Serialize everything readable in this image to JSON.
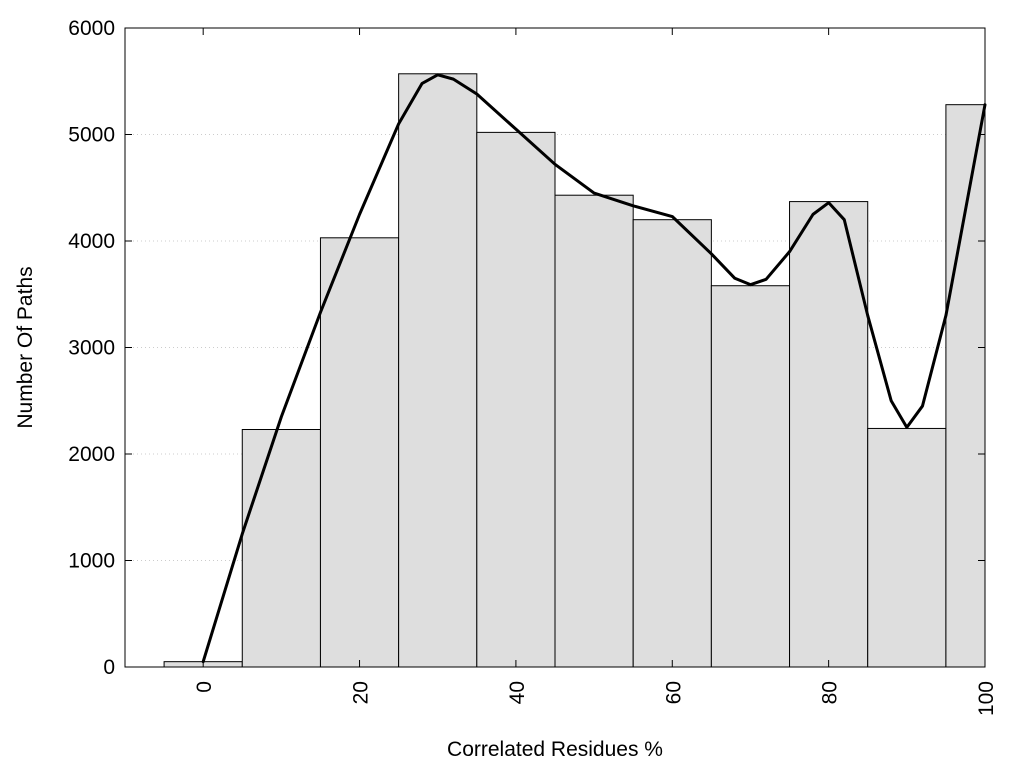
{
  "chart_data": {
    "type": "bar",
    "title": "",
    "xlabel": "Correlated Residues %",
    "ylabel": "Number Of Paths",
    "xlim": [
      -10,
      100
    ],
    "ylim": [
      0,
      6000
    ],
    "x_ticks": [
      0,
      20,
      40,
      60,
      80,
      100
    ],
    "y_ticks": [
      0,
      1000,
      2000,
      3000,
      4000,
      5000,
      6000
    ],
    "grid": true,
    "legend": "none",
    "bar_width": 10,
    "x": [
      0,
      10,
      20,
      30,
      40,
      50,
      60,
      70,
      80,
      90,
      100
    ],
    "values": [
      50,
      2230,
      4030,
      5570,
      5020,
      4430,
      4200,
      3580,
      4370,
      2240,
      5280
    ],
    "smooth_line": {
      "x": [
        0,
        5,
        10,
        15,
        20,
        25,
        28,
        30,
        32,
        35,
        40,
        45,
        50,
        55,
        60,
        65,
        68,
        70,
        72,
        75,
        78,
        80,
        82,
        85,
        88,
        90,
        92,
        95,
        100
      ],
      "y": [
        50,
        1250,
        2350,
        3330,
        4250,
        5100,
        5480,
        5560,
        5520,
        5380,
        5050,
        4720,
        4450,
        4330,
        4230,
        3880,
        3650,
        3590,
        3640,
        3900,
        4250,
        4360,
        4200,
        3300,
        2500,
        2250,
        2450,
        3300,
        5280
      ]
    },
    "colors": {
      "bar_fill": "#dedede",
      "bar_edge": "#000000",
      "line": "#000000",
      "grid": "#cccccc"
    }
  }
}
